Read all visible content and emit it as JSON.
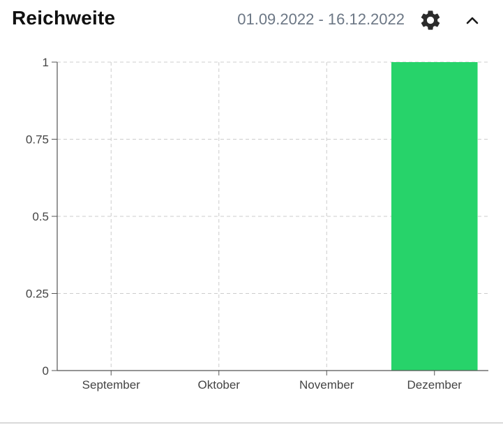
{
  "header": {
    "title": "Reichweite",
    "date_range": "01.09.2022 - 16.12.2022",
    "settings_icon": "gear-icon",
    "collapse_icon": "chevron-up-icon"
  },
  "colors": {
    "bar": "#27d36a",
    "grid": "#cccccc",
    "axis": "#555555",
    "date_text": "#6c7785"
  },
  "chart_data": {
    "type": "bar",
    "title": "",
    "xlabel": "",
    "ylabel": "",
    "categories": [
      "September",
      "Oktober",
      "November",
      "Dezember"
    ],
    "values": [
      0,
      0,
      0,
      1
    ],
    "ylim": [
      0,
      1
    ],
    "yticks": [
      0,
      0.25,
      0.5,
      0.75,
      1
    ],
    "ytick_labels": [
      "0",
      "0.25",
      "0.5",
      "0.75",
      "1"
    ],
    "grid": true
  }
}
